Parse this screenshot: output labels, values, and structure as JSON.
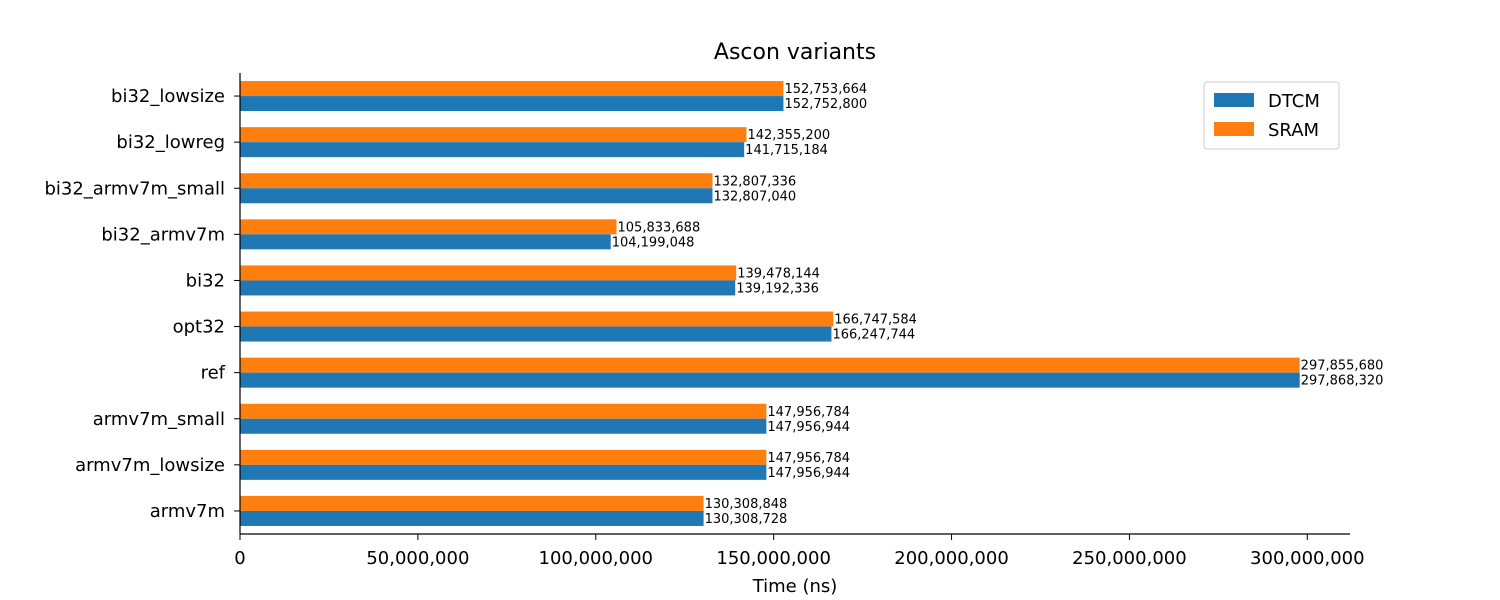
{
  "chart_data": {
    "type": "bar",
    "orientation": "horizontal",
    "title": "Ascon variants",
    "xlabel": "Time (ns)",
    "ylabel": "",
    "xlim": [
      0,
      312000000
    ],
    "xticks": [
      0,
      50000000,
      100000000,
      150000000,
      200000000,
      250000000,
      300000000
    ],
    "xtick_labels": [
      "0",
      "50,000,000",
      "100,000,000",
      "150,000,000",
      "200,000,000",
      "250,000,000",
      "300,000,000"
    ],
    "categories": [
      "bi32_lowsize",
      "bi32_lowreg",
      "bi32_armv7m_small",
      "bi32_armv7m",
      "bi32",
      "opt32",
      "ref",
      "armv7m_small",
      "armv7m_lowsize",
      "armv7m"
    ],
    "series": [
      {
        "name": "DTCM",
        "color": "#1f77b4",
        "values": [
          152752800,
          141715184,
          132807040,
          104199048,
          139192336,
          166247744,
          297868320,
          147956944,
          147956944,
          130308728
        ],
        "labels": [
          "152,752,800",
          "141,715,184",
          "132,807,040",
          "104,199,048",
          "139,192,336",
          "166,247,744",
          "297,868,320",
          "147,956,944",
          "147,956,944",
          "130,308,728"
        ]
      },
      {
        "name": "SRAM",
        "color": "#ff7f0e",
        "values": [
          152753664,
          142355200,
          132807336,
          105833688,
          139478144,
          166747584,
          297855680,
          147956784,
          147956784,
          130308848
        ],
        "labels": [
          "152,753,664",
          "142,355,200",
          "132,807,336",
          "105,833,688",
          "139,478,144",
          "166,747,584",
          "297,855,680",
          "147,956,784",
          "147,956,784",
          "130,308,848"
        ]
      }
    ],
    "legend_position": "top-right",
    "grid": false
  }
}
